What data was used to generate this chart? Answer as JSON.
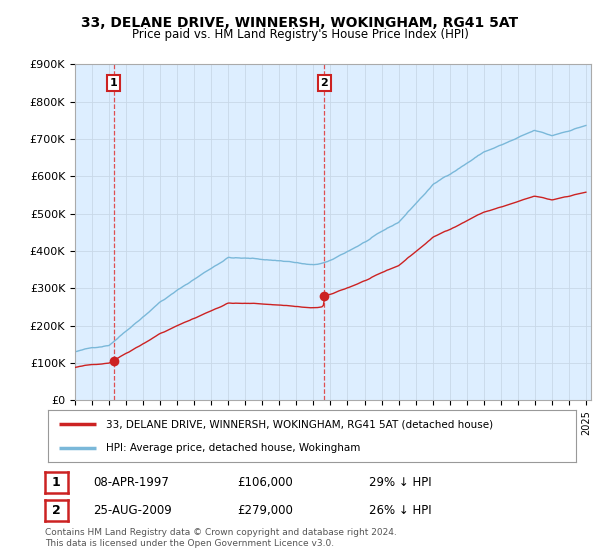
{
  "title": "33, DELANE DRIVE, WINNERSH, WOKINGHAM, RG41 5AT",
  "subtitle": "Price paid vs. HM Land Registry's House Price Index (HPI)",
  "ylim": [
    0,
    900000
  ],
  "yticks": [
    0,
    100000,
    200000,
    300000,
    400000,
    500000,
    600000,
    700000,
    800000,
    900000
  ],
  "ytick_labels": [
    "£0",
    "£100K",
    "£200K",
    "£300K",
    "£400K",
    "£500K",
    "£600K",
    "£700K",
    "£800K",
    "£900K"
  ],
  "xmin": 1995,
  "xmax": 2025,
  "sale1_date": 1997.27,
  "sale1_price": 106000,
  "sale2_date": 2009.64,
  "sale2_price": 279000,
  "hpi_color": "#7ab8d9",
  "price_color": "#cc2222",
  "bg_color": "#ddeeff",
  "plot_bg": "#ddeeff",
  "legend_label_price": "33, DELANE DRIVE, WINNERSH, WOKINGHAM, RG41 5AT (detached house)",
  "legend_label_hpi": "HPI: Average price, detached house, Wokingham",
  "table_row1": [
    "1",
    "08-APR-1997",
    "£106,000",
    "29% ↓ HPI"
  ],
  "table_row2": [
    "2",
    "25-AUG-2009",
    "£279,000",
    "26% ↓ HPI"
  ],
  "footer": "Contains HM Land Registry data © Crown copyright and database right 2024.\nThis data is licensed under the Open Government Licence v3.0.",
  "background_color": "#ffffff",
  "grid_color": "#c8d8e8"
}
